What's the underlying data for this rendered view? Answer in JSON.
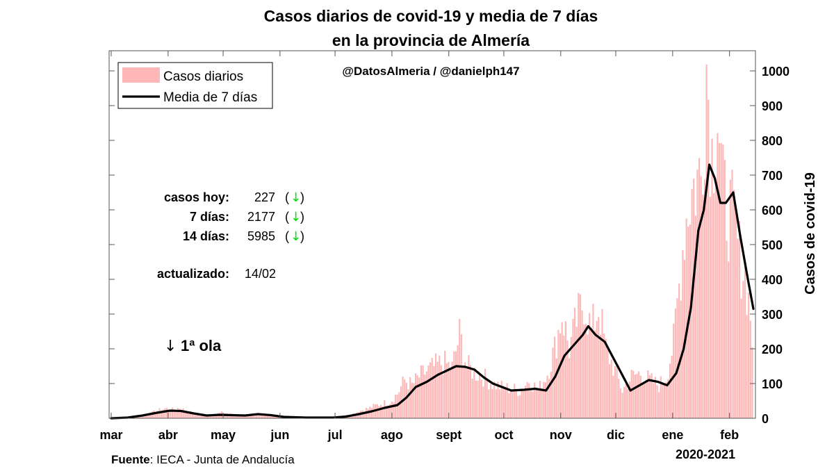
{
  "title_line1": "Casos diarios de covid-19 y media de 7 días",
  "title_line2": "en la provincia de Almería",
  "handle": "@DatosAlmeria / @danielph147",
  "legend": {
    "bars": "Casos diarios",
    "line": "Media de 7 días",
    "placement": "top-left"
  },
  "stats": [
    {
      "label": "casos hoy:",
      "value": "227",
      "trend": "↓"
    },
    {
      "label": "7 días:",
      "value": "2177",
      "trend": "↓"
    },
    {
      "label": "14 días:",
      "value": "5985",
      "trend": "↓"
    }
  ],
  "updated_label": "actualizado:",
  "updated_value": "14/02",
  "annotation": {
    "arrow": "↓",
    "text": "1ª ola"
  },
  "source_bold": "Fuente",
  "source_rest": ": IECA - Junta de Andalucía",
  "period": "2020-2021",
  "colors": {
    "bars": "#ffb6b6",
    "line": "#000000",
    "arrow": "#00dd00"
  },
  "chart_data": {
    "type": "bar",
    "title": "Casos diarios de covid-19 y media de 7 días en la provincia de Almería",
    "ylabel": "Casos de covid-19",
    "y_axis_side": "right",
    "ylim": [
      0,
      1050
    ],
    "yticks": [
      0,
      100,
      200,
      300,
      400,
      500,
      600,
      700,
      800,
      900,
      1000
    ],
    "x_start": "2020-03-01",
    "x_end": "2021-02-14",
    "month_ticks": [
      {
        "label": "mar",
        "date": "2020-03-01"
      },
      {
        "label": "abr",
        "date": "2020-04-01"
      },
      {
        "label": "may",
        "date": "2020-05-01"
      },
      {
        "label": "jun",
        "date": "2020-06-01"
      },
      {
        "label": "jul",
        "date": "2020-07-01"
      },
      {
        "label": "ago",
        "date": "2020-08-01"
      },
      {
        "label": "sept",
        "date": "2020-09-01"
      },
      {
        "label": "oct",
        "date": "2020-10-01"
      },
      {
        "label": "nov",
        "date": "2020-11-01"
      },
      {
        "label": "dic",
        "date": "2020-12-01"
      },
      {
        "label": "ene",
        "date": "2021-01-01"
      },
      {
        "label": "feb",
        "date": "2021-02-01"
      }
    ],
    "series": [
      {
        "name": "Casos diarios",
        "kind": "bar",
        "points": [
          [
            "2020-03-01",
            0
          ],
          [
            "2020-03-10",
            2
          ],
          [
            "2020-03-16",
            8
          ],
          [
            "2020-03-22",
            14
          ],
          [
            "2020-03-26",
            22
          ],
          [
            "2020-03-30",
            28
          ],
          [
            "2020-04-03",
            25
          ],
          [
            "2020-04-07",
            30
          ],
          [
            "2020-04-11",
            20
          ],
          [
            "2020-04-15",
            14
          ],
          [
            "2020-04-20",
            8
          ],
          [
            "2020-04-25",
            10
          ],
          [
            "2020-04-30",
            16
          ],
          [
            "2020-05-05",
            12
          ],
          [
            "2020-05-10",
            6
          ],
          [
            "2020-05-15",
            8
          ],
          [
            "2020-05-20",
            14
          ],
          [
            "2020-05-25",
            10
          ],
          [
            "2020-05-31",
            4
          ],
          [
            "2020-06-05",
            3
          ],
          [
            "2020-06-12",
            4
          ],
          [
            "2020-06-20",
            2
          ],
          [
            "2020-06-30",
            3
          ],
          [
            "2020-07-05",
            6
          ],
          [
            "2020-07-10",
            12
          ],
          [
            "2020-07-15",
            22
          ],
          [
            "2020-07-20",
            30
          ],
          [
            "2020-07-25",
            40
          ],
          [
            "2020-07-31",
            48
          ],
          [
            "2020-08-04",
            70
          ],
          [
            "2020-08-08",
            110
          ],
          [
            "2020-08-12",
            95
          ],
          [
            "2020-08-16",
            120
          ],
          [
            "2020-08-20",
            135
          ],
          [
            "2020-08-25",
            150
          ],
          [
            "2020-08-29",
            160
          ],
          [
            "2020-09-03",
            145
          ],
          [
            "2020-09-07",
            240
          ],
          [
            "2020-09-11",
            150
          ],
          [
            "2020-09-16",
            130
          ],
          [
            "2020-09-20",
            120
          ],
          [
            "2020-09-25",
            100
          ],
          [
            "2020-09-30",
            90
          ],
          [
            "2020-10-05",
            85
          ],
          [
            "2020-10-10",
            80
          ],
          [
            "2020-10-15",
            110
          ],
          [
            "2020-10-20",
            80
          ],
          [
            "2020-10-25",
            130
          ],
          [
            "2020-10-29",
            200
          ],
          [
            "2020-11-02",
            300
          ],
          [
            "2020-11-06",
            200
          ],
          [
            "2020-11-10",
            280
          ],
          [
            "2020-11-14",
            340
          ],
          [
            "2020-11-18",
            250
          ],
          [
            "2020-11-22",
            320
          ],
          [
            "2020-11-26",
            200
          ],
          [
            "2020-11-30",
            150
          ],
          [
            "2020-12-05",
            80
          ],
          [
            "2020-12-10",
            120
          ],
          [
            "2020-12-15",
            130
          ],
          [
            "2020-12-20",
            110
          ],
          [
            "2020-12-25",
            95
          ],
          [
            "2020-12-29",
            120
          ],
          [
            "2021-01-02",
            220
          ],
          [
            "2021-01-05",
            380
          ],
          [
            "2021-01-08",
            550
          ],
          [
            "2021-01-11",
            640
          ],
          [
            "2021-01-14",
            680
          ],
          [
            "2021-01-17",
            700
          ],
          [
            "2021-01-20",
            1025
          ],
          [
            "2021-01-23",
            760
          ],
          [
            "2021-01-26",
            910
          ],
          [
            "2021-01-29",
            640
          ],
          [
            "2021-02-01",
            600
          ],
          [
            "2021-02-04",
            560
          ],
          [
            "2021-02-07",
            470
          ],
          [
            "2021-02-10",
            420
          ],
          [
            "2021-02-13",
            300
          ],
          [
            "2021-02-14",
            227
          ]
        ]
      },
      {
        "name": "Media de 7 días",
        "kind": "line",
        "points": [
          [
            "2020-03-01",
            0
          ],
          [
            "2020-03-10",
            2
          ],
          [
            "2020-03-18",
            8
          ],
          [
            "2020-03-26",
            16
          ],
          [
            "2020-04-02",
            22
          ],
          [
            "2020-04-08",
            21
          ],
          [
            "2020-04-15",
            14
          ],
          [
            "2020-04-22",
            8
          ],
          [
            "2020-04-29",
            10
          ],
          [
            "2020-05-06",
            9
          ],
          [
            "2020-05-13",
            8
          ],
          [
            "2020-05-20",
            12
          ],
          [
            "2020-05-27",
            9
          ],
          [
            "2020-06-03",
            4
          ],
          [
            "2020-06-15",
            2
          ],
          [
            "2020-06-30",
            2
          ],
          [
            "2020-07-07",
            5
          ],
          [
            "2020-07-14",
            12
          ],
          [
            "2020-07-21",
            20
          ],
          [
            "2020-07-28",
            30
          ],
          [
            "2020-08-04",
            38
          ],
          [
            "2020-08-09",
            60
          ],
          [
            "2020-08-14",
            90
          ],
          [
            "2020-08-20",
            105
          ],
          [
            "2020-08-26",
            125
          ],
          [
            "2020-09-01",
            140
          ],
          [
            "2020-09-05",
            150
          ],
          [
            "2020-09-10",
            148
          ],
          [
            "2020-09-15",
            140
          ],
          [
            "2020-09-20",
            118
          ],
          [
            "2020-09-25",
            100
          ],
          [
            "2020-09-30",
            90
          ],
          [
            "2020-10-05",
            80
          ],
          [
            "2020-10-12",
            82
          ],
          [
            "2020-10-18",
            85
          ],
          [
            "2020-10-24",
            80
          ],
          [
            "2020-10-29",
            120
          ],
          [
            "2020-11-03",
            180
          ],
          [
            "2020-11-08",
            210
          ],
          [
            "2020-11-13",
            240
          ],
          [
            "2020-11-16",
            265
          ],
          [
            "2020-11-20",
            240
          ],
          [
            "2020-11-25",
            220
          ],
          [
            "2020-11-30",
            170
          ],
          [
            "2020-12-05",
            120
          ],
          [
            "2020-12-09",
            80
          ],
          [
            "2020-12-14",
            95
          ],
          [
            "2020-12-19",
            110
          ],
          [
            "2020-12-24",
            105
          ],
          [
            "2020-12-29",
            95
          ],
          [
            "2021-01-03",
            130
          ],
          [
            "2021-01-07",
            200
          ],
          [
            "2021-01-11",
            320
          ],
          [
            "2021-01-15",
            540
          ],
          [
            "2021-01-18",
            600
          ],
          [
            "2021-01-21",
            730
          ],
          [
            "2021-01-24",
            690
          ],
          [
            "2021-01-27",
            620
          ],
          [
            "2021-01-30",
            620
          ],
          [
            "2021-02-03",
            650
          ],
          [
            "2021-02-07",
            520
          ],
          [
            "2021-02-11",
            400
          ],
          [
            "2021-02-14",
            315
          ]
        ]
      }
    ]
  }
}
